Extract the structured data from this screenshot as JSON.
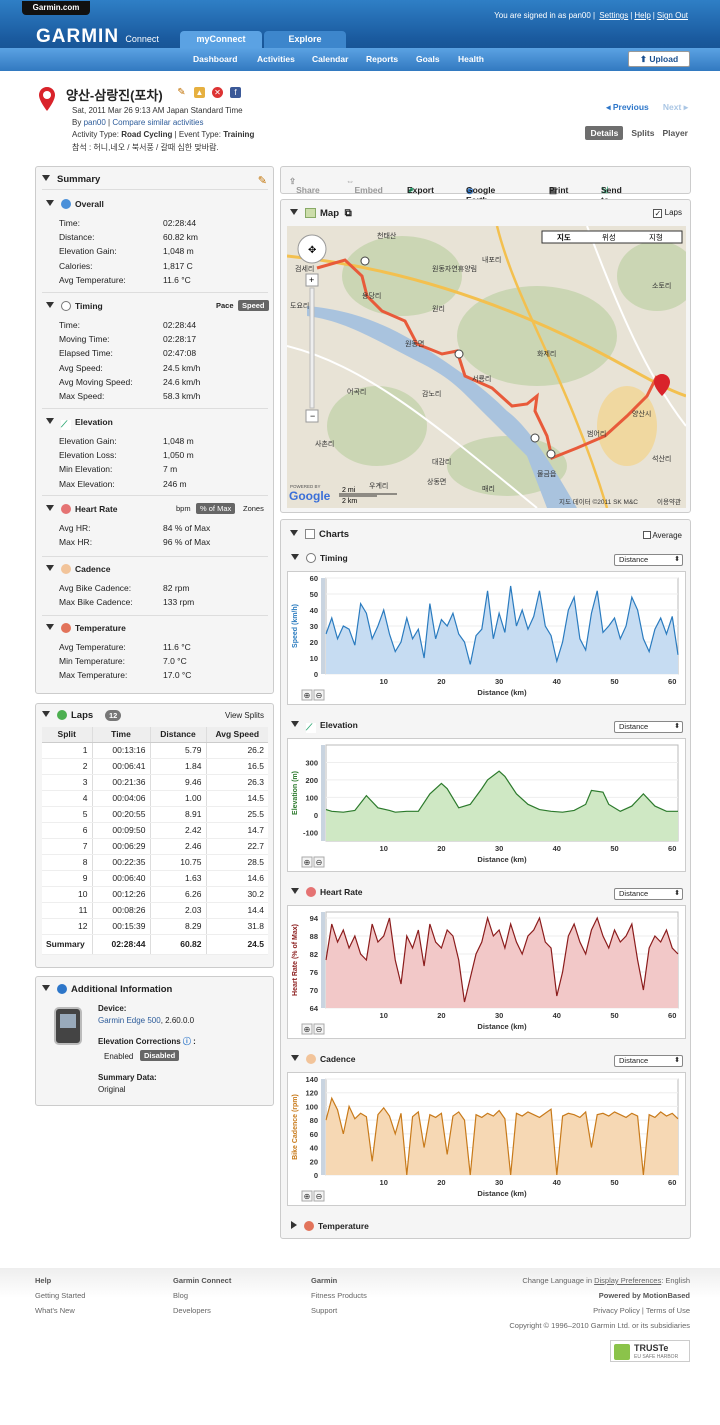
{
  "header": {
    "garmin_tab": "Garmin.com",
    "brand": "GARMIN",
    "brand_sub": "Connect",
    "signed_in": "You are signed in as pan00",
    "links": [
      "Settings",
      "Help",
      "Sign Out"
    ],
    "tabs": [
      "myConnect",
      "Explore"
    ],
    "nav": [
      "Dashboard",
      "Activities",
      "Calendar",
      "Reports",
      "Goals",
      "Health"
    ],
    "upload": "Upload"
  },
  "activity": {
    "title": "양산-삼랑진(포차)",
    "date": "Sat, 2011 Mar 26 9:13 AM Japan Standard Time",
    "by_label": "By",
    "by_user": "pan00",
    "compare": "Compare similar activities",
    "type_label": "Activity Type:",
    "type": "Road Cycling",
    "event_label": "| Event Type:",
    "event": "Training",
    "note": "참석 : 허니,네오 / 북서풍 / 갈때 심한 맞바람.",
    "previous": "Previous",
    "next": "Next",
    "views": [
      "Details",
      "Splits",
      "Player"
    ]
  },
  "summary": {
    "title": "Summary",
    "overall": {
      "title": "Overall",
      "rows": [
        [
          "Time:",
          "02:28:44"
        ],
        [
          "Distance:",
          "60.82 km"
        ],
        [
          "Elevation Gain:",
          "1,048 m"
        ],
        [
          "Calories:",
          "1,817 C"
        ],
        [
          "Avg Temperature:",
          "11.6 °C"
        ]
      ]
    },
    "timing": {
      "title": "Timing",
      "toggle": [
        "Pace",
        "Speed"
      ],
      "rows": [
        [
          "Time:",
          "02:28:44"
        ],
        [
          "Moving Time:",
          "02:28:17"
        ],
        [
          "Elapsed Time:",
          "02:47:08"
        ],
        [
          "Avg Speed:",
          "24.5 km/h"
        ],
        [
          "Avg Moving Speed:",
          "24.6 km/h"
        ],
        [
          "Max Speed:",
          "58.3 km/h"
        ]
      ]
    },
    "elevation": {
      "title": "Elevation",
      "rows": [
        [
          "Elevation Gain:",
          "1,048 m"
        ],
        [
          "Elevation Loss:",
          "1,050 m"
        ],
        [
          "Min Elevation:",
          "7 m"
        ],
        [
          "Max Elevation:",
          "246 m"
        ]
      ]
    },
    "heart": {
      "title": "Heart Rate",
      "toggle": [
        "bpm",
        "% of Max",
        "Zones"
      ],
      "rows": [
        [
          "Avg HR:",
          "84 % of Max"
        ],
        [
          "Max HR:",
          "96 % of Max"
        ]
      ]
    },
    "cadence": {
      "title": "Cadence",
      "rows": [
        [
          "Avg Bike Cadence:",
          "82 rpm"
        ],
        [
          "Max Bike Cadence:",
          "133 rpm"
        ]
      ]
    },
    "temperature": {
      "title": "Temperature",
      "rows": [
        [
          "Avg Temperature:",
          "11.6 °C"
        ],
        [
          "Min Temperature:",
          "7.0 °C"
        ],
        [
          "Max Temperature:",
          "17.0 °C"
        ]
      ]
    }
  },
  "laps": {
    "title": "Laps",
    "count": "12",
    "view": "View Splits",
    "columns": [
      "Split",
      "Time",
      "Distance",
      "Avg Speed"
    ],
    "rows": [
      [
        "1",
        "00:13:16",
        "5.79",
        "26.2"
      ],
      [
        "2",
        "00:06:41",
        "1.84",
        "16.5"
      ],
      [
        "3",
        "00:21:36",
        "9.46",
        "26.3"
      ],
      [
        "4",
        "00:04:06",
        "1.00",
        "14.5"
      ],
      [
        "5",
        "00:20:55",
        "8.91",
        "25.5"
      ],
      [
        "6",
        "00:09:50",
        "2.42",
        "14.7"
      ],
      [
        "7",
        "00:06:29",
        "2.46",
        "22.7"
      ],
      [
        "8",
        "00:22:35",
        "10.75",
        "28.5"
      ],
      [
        "9",
        "00:06:40",
        "1.63",
        "14.6"
      ],
      [
        "10",
        "00:12:26",
        "6.26",
        "30.2"
      ],
      [
        "11",
        "00:08:26",
        "2.03",
        "14.4"
      ],
      [
        "12",
        "00:15:39",
        "8.29",
        "31.8"
      ]
    ],
    "summary": [
      "Summary",
      "02:28:44",
      "60.82",
      "24.5"
    ]
  },
  "info": {
    "title": "Additional Information",
    "device_label": "Device:",
    "device": "Garmin Edge 500",
    "version": ", 2.60.0.0",
    "corr_label": "Elevation Corrections",
    "enabled": "Enabled",
    "disabled": "Disabled",
    "sum_label": "Summary Data:",
    "sum_val": "Original"
  },
  "toolbar": [
    "Share",
    "Embed",
    "Export",
    "Google Earth",
    "Print",
    "Send to Device"
  ],
  "map": {
    "title": "Map",
    "laps": "Laps",
    "types": [
      "지도",
      "위성",
      "지형"
    ],
    "labels": [
      "천태산",
      "검세리",
      "도요리",
      "용당리",
      "원동자연휴양림",
      "내포리",
      "원리",
      "원동면",
      "화제리",
      "서룡리",
      "감노리",
      "어곡리",
      "사촌리",
      "대감리",
      "상동면",
      "우계리",
      "매리",
      "물금읍",
      "범어리",
      "양산시",
      "석산리",
      "소토리"
    ],
    "credit": "지도 데이터 ©2011 SK M&C",
    "terms": "이용약관",
    "scale": [
      "2 mi",
      "2 km"
    ],
    "powered": "POWERED BY",
    "google": "Google"
  },
  "charts": {
    "title": "Charts",
    "average": "Average",
    "dropdown": "Distance",
    "xlabel": "Distance (km)",
    "timing": {
      "title": "Timing",
      "ylabel": "Speed (km/h)"
    },
    "elevation": {
      "title": "Elevation",
      "ylabel": "Elevation (m)"
    },
    "heart": {
      "title": "Heart Rate",
      "ylabel": "Heart Rate (% of Max)"
    },
    "cadence": {
      "title": "Cadence",
      "ylabel": "Bike Cadence (rpm)"
    },
    "temperature": {
      "title": "Temperature"
    }
  },
  "chart_data": [
    {
      "type": "area",
      "title": "Timing",
      "ylabel": "Speed (km/h)",
      "xlabel": "Distance (km)",
      "xlim": [
        0,
        61
      ],
      "ylim": [
        0,
        60
      ],
      "yticks": [
        0,
        10,
        20,
        30,
        40,
        50,
        60
      ],
      "xticks": [
        10,
        20,
        30,
        40,
        50,
        60
      ],
      "color": "#2a7bbf",
      "fill": "#c6dcf2",
      "x": [
        0,
        1,
        2,
        3,
        4,
        5,
        6,
        7,
        8,
        9,
        10,
        11,
        12,
        13,
        14,
        15,
        16,
        17,
        18,
        19,
        20,
        21,
        22,
        23,
        24,
        25,
        26,
        27,
        28,
        29,
        30,
        31,
        32,
        33,
        34,
        35,
        36,
        37,
        38,
        39,
        40,
        41,
        42,
        43,
        44,
        45,
        46,
        47,
        48,
        49,
        50,
        51,
        52,
        53,
        54,
        55,
        56,
        57,
        58,
        59,
        60,
        61
      ],
      "values": [
        25,
        35,
        22,
        30,
        28,
        18,
        44,
        38,
        22,
        30,
        40,
        25,
        14,
        20,
        35,
        22,
        28,
        10,
        44,
        22,
        34,
        30,
        38,
        25,
        20,
        6,
        24,
        28,
        52,
        22,
        38,
        26,
        55,
        30,
        40,
        28,
        36,
        52,
        30,
        24,
        8,
        20,
        40,
        48,
        22,
        15,
        38,
        52,
        26,
        30,
        35,
        22,
        30,
        48,
        40,
        22,
        14,
        28,
        35,
        25,
        36,
        12
      ]
    },
    {
      "type": "area",
      "title": "Elevation",
      "ylabel": "Elevation (m)",
      "xlabel": "Distance (km)",
      "xlim": [
        0,
        61
      ],
      "ylim": [
        -150,
        400
      ],
      "yticks": [
        -100,
        0,
        100,
        200,
        300
      ],
      "xticks": [
        10,
        20,
        30,
        40,
        50,
        60
      ],
      "color": "#2c7a2c",
      "fill": "#cfe8c4",
      "x": [
        0,
        1,
        3,
        5,
        7,
        9,
        11,
        12,
        14,
        16,
        18,
        20,
        21,
        23,
        25,
        27,
        28,
        30,
        31,
        33,
        35,
        37,
        39,
        41,
        43,
        45,
        46,
        48,
        49,
        51,
        53,
        55,
        57,
        59,
        61
      ],
      "values": [
        30,
        20,
        15,
        25,
        110,
        40,
        25,
        15,
        20,
        20,
        120,
        180,
        150,
        40,
        60,
        150,
        200,
        250,
        220,
        120,
        60,
        30,
        20,
        15,
        25,
        60,
        140,
        130,
        60,
        20,
        50,
        120,
        50,
        20,
        20
      ]
    },
    {
      "type": "area",
      "title": "Heart Rate",
      "ylabel": "Heart Rate (% of Max)",
      "xlabel": "Distance (km)",
      "xlim": [
        0,
        61
      ],
      "ylim": [
        64,
        96
      ],
      "yticks": [
        64,
        70,
        76,
        82,
        88,
        94
      ],
      "xticks": [
        10,
        20,
        30,
        40,
        50,
        60
      ],
      "color": "#8b1c1c",
      "fill": "#f2c8c8",
      "x": [
        0,
        1,
        2,
        3,
        4,
        5,
        6,
        7,
        8,
        9,
        10,
        11,
        12,
        13,
        14,
        15,
        16,
        17,
        18,
        19,
        20,
        21,
        22,
        23,
        24,
        25,
        26,
        27,
        28,
        29,
        30,
        31,
        32,
        33,
        34,
        35,
        36,
        37,
        38,
        39,
        40,
        41,
        42,
        43,
        44,
        45,
        46,
        47,
        48,
        49,
        50,
        51,
        52,
        53,
        54,
        55,
        56,
        57,
        58,
        59,
        60,
        61
      ],
      "values": [
        80,
        92,
        86,
        90,
        84,
        88,
        82,
        80,
        92,
        86,
        88,
        94,
        80,
        72,
        88,
        84,
        90,
        78,
        92,
        86,
        84,
        90,
        88,
        80,
        66,
        74,
        82,
        86,
        94,
        88,
        90,
        84,
        92,
        86,
        82,
        88,
        90,
        94,
        86,
        84,
        68,
        76,
        88,
        92,
        86,
        82,
        90,
        94,
        88,
        84,
        90,
        86,
        88,
        92,
        80,
        70,
        84,
        88,
        86,
        90,
        84,
        82
      ]
    },
    {
      "type": "area",
      "title": "Cadence",
      "ylabel": "Bike Cadence (rpm)",
      "xlabel": "Distance (km)",
      "xlim": [
        0,
        61
      ],
      "ylim": [
        0,
        140
      ],
      "yticks": [
        0,
        20,
        40,
        60,
        80,
        100,
        120,
        140
      ],
      "xticks": [
        10,
        20,
        30,
        40,
        50,
        60
      ],
      "color": "#c87a1a",
      "fill": "#f6d8b4",
      "x": [
        0,
        1,
        2,
        3,
        4,
        5,
        6,
        7,
        8,
        9,
        10,
        11,
        12,
        13,
        14,
        15,
        16,
        17,
        18,
        19,
        20,
        21,
        22,
        23,
        24,
        25,
        26,
        27,
        28,
        29,
        30,
        31,
        32,
        33,
        34,
        35,
        36,
        37,
        38,
        39,
        40,
        41,
        42,
        43,
        44,
        45,
        46,
        47,
        48,
        49,
        50,
        51,
        52,
        53,
        54,
        55,
        56,
        57,
        58,
        59,
        60,
        61
      ],
      "values": [
        80,
        112,
        95,
        60,
        100,
        82,
        90,
        85,
        20,
        88,
        98,
        86,
        60,
        90,
        0,
        85,
        92,
        40,
        88,
        84,
        90,
        30,
        86,
        92,
        80,
        0,
        88,
        84,
        90,
        86,
        94,
        82,
        0,
        90,
        86,
        92,
        88,
        84,
        90,
        96,
        0,
        86,
        90,
        88,
        84,
        92,
        40,
        88,
        90,
        86,
        92,
        88,
        84,
        90,
        86,
        0,
        88,
        84,
        92,
        86,
        90,
        82
      ]
    }
  ],
  "footer": {
    "help": "Help",
    "help_links": [
      "Getting Started",
      "What's New"
    ],
    "gc": "Garmin Connect",
    "gc_links": [
      "Blog",
      "Developers"
    ],
    "garmin": "Garmin",
    "garmin_links": [
      "Fitness Products",
      "Support"
    ],
    "lang": "Change Language in",
    "lang_link": "Display Preferences",
    "lang_val": ": English",
    "powered": "Powered by MotionBased",
    "privacy": "Privacy Policy",
    "terms": "Terms of Use",
    "copyright": "Copyright © 1996–2010 Garmin Ltd. or its subsidiaries",
    "truste": "TRUSTe",
    "truste_sub": "EU SAFE HARBOR"
  }
}
